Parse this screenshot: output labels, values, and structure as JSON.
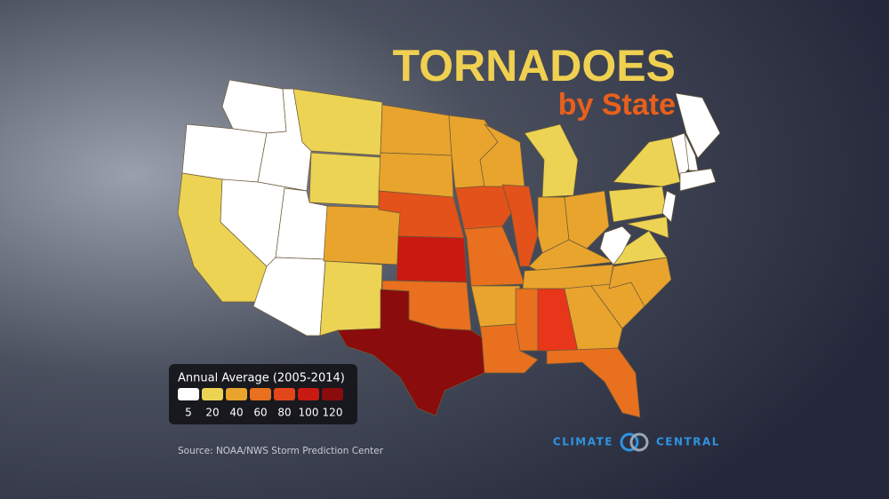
{
  "title": "TORNADOES",
  "subtitle": "by State",
  "legend": {
    "title": "Annual Average (2005-2014)",
    "colors": [
      "#ffffff",
      "#ecd354",
      "#e9a42d",
      "#e8701e",
      "#e3461b",
      "#c81a10",
      "#8a0c0c"
    ],
    "labels": [
      5,
      20,
      40,
      60,
      80,
      100,
      120
    ]
  },
  "source": "Source: NOAA/NWS Storm Prediction Center",
  "logo": {
    "left": "CLIMATE",
    "right": "CENTRAL"
  }
}
